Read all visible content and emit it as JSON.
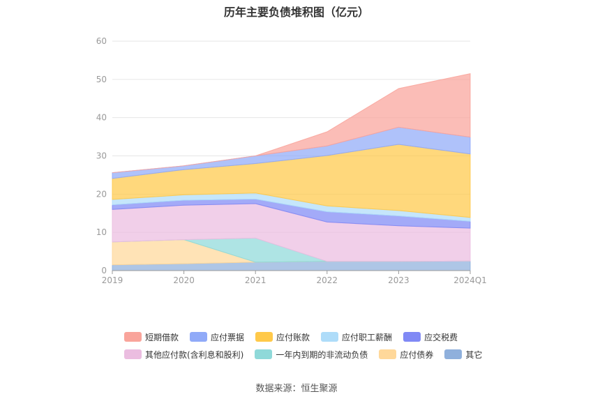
{
  "chart_data": {
    "type": "area",
    "stacked": true,
    "title": "历年主要负债堆积图（亿元）",
    "categories": [
      "2019",
      "2020",
      "2021",
      "2022",
      "2023",
      "2024Q1"
    ],
    "ylim": [
      0,
      60
    ],
    "yticks": [
      0,
      10,
      20,
      30,
      40,
      50,
      60
    ],
    "grid": true,
    "legend_position": "bottom",
    "series": [
      {
        "name": "其它",
        "color": "#8fb0dc",
        "values": [
          1.5,
          1.8,
          2.2,
          2.4,
          2.4,
          2.5
        ]
      },
      {
        "name": "应付债券",
        "color": "#ffd89a",
        "values": [
          6.0,
          6.3,
          0,
          0,
          0,
          0
        ]
      },
      {
        "name": "一年内到期的非流动负债",
        "color": "#8fd9d9",
        "values": [
          0,
          0,
          6.3,
          0,
          0,
          0
        ]
      },
      {
        "name": "其他应付款(含利息和股利)",
        "color": "#ebbde0",
        "values": [
          8.5,
          9.0,
          9.0,
          10.3,
          9.3,
          8.6
        ]
      },
      {
        "name": "应交税费",
        "color": "#8089f5",
        "values": [
          1.2,
          1.3,
          1.2,
          2.7,
          2.6,
          1.8
        ]
      },
      {
        "name": "应付职工薪酬",
        "color": "#aedcf9",
        "values": [
          1.4,
          1.4,
          1.6,
          1.5,
          1.4,
          1.0
        ]
      },
      {
        "name": "应付账款",
        "color": "#ffc94a",
        "values": [
          5.5,
          6.6,
          7.7,
          13.2,
          17.3,
          16.6
        ]
      },
      {
        "name": "应付票据",
        "color": "#90aaf8",
        "values": [
          1.5,
          1.0,
          2.0,
          2.5,
          4.5,
          4.4
        ]
      },
      {
        "name": "短期借款",
        "color": "#f9a49b",
        "values": [
          0,
          0,
          0,
          3.7,
          10.1,
          16.6
        ]
      }
    ]
  },
  "legend": {
    "rows": [
      [
        {
          "name": "短期借款",
          "color": "#f9a49b"
        },
        {
          "name": "应付票据",
          "color": "#90aaf8"
        },
        {
          "name": "应付账款",
          "color": "#ffc94a"
        },
        {
          "name": "应付职工薪酬",
          "color": "#aedcf9"
        },
        {
          "name": "应交税费",
          "color": "#8089f5"
        }
      ],
      [
        {
          "name": "其他应付款(含利息和股利)",
          "color": "#ebbde0"
        },
        {
          "name": "一年内到期的非流动负债",
          "color": "#8fd9d9"
        },
        {
          "name": "应付债券",
          "color": "#ffd89a"
        },
        {
          "name": "其它",
          "color": "#8fb0dc"
        }
      ]
    ]
  },
  "source": "数据来源：恒生聚源"
}
